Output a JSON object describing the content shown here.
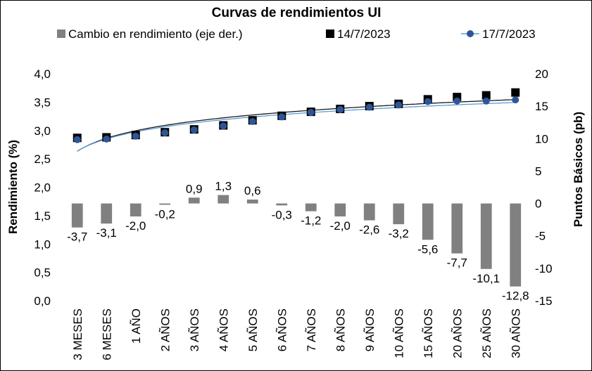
{
  "chart_data": {
    "type": "bar",
    "title": "Curvas de rendimientos UI",
    "categories": [
      "3 MESES",
      "6 MESES",
      "1 AÑO",
      "2 AÑOS",
      "3 AÑOS",
      "4 AÑOS",
      "5 AÑOS",
      "6 AÑOS",
      "7 AÑOS",
      "8 AÑOS",
      "9 AÑOS",
      "10 AÑOS",
      "15 AÑOS",
      "20 AÑOS",
      "25 AÑOS",
      "30 AÑOS"
    ],
    "legend": {
      "position": "top",
      "entries": [
        "Cambio en rendimiento (eje der.)",
        "14/7/2023",
        "17/7/2023"
      ]
    },
    "series": [
      {
        "name": "Cambio en rendimiento (eje der.)",
        "type": "bar",
        "axis": "right",
        "color": "#808080",
        "values": [
          -3.7,
          -3.1,
          -2.0,
          -0.2,
          0.9,
          1.3,
          0.6,
          -0.3,
          -1.2,
          -2.0,
          -2.6,
          -3.2,
          -5.6,
          -7.7,
          -10.1,
          -12.8
        ],
        "labels": [
          "-3,7",
          "-3,1",
          "-2,0",
          "-0,2",
          "0,9",
          "1,3",
          "0,6",
          "-0,3",
          "-1,2",
          "-2,0",
          "-2,6",
          "-3,2",
          "-5,6",
          "-7,7",
          "-10,1",
          "-12,8"
        ]
      },
      {
        "name": "14/7/2023",
        "type": "scatter",
        "axis": "left",
        "marker": "square",
        "color": "#000000",
        "trendline_color": "#1a1a1a",
        "values": [
          2.87,
          2.88,
          2.92,
          2.97,
          3.02,
          3.09,
          3.18,
          3.26,
          3.33,
          3.38,
          3.43,
          3.47,
          3.55,
          3.59,
          3.62,
          3.67
        ]
      },
      {
        "name": "17/7/2023",
        "type": "scatter",
        "axis": "left",
        "marker": "circle",
        "color": "#2e5597",
        "trendline_color": "#5b9bd5",
        "values": [
          2.84,
          2.85,
          2.9,
          2.96,
          3.01,
          3.08,
          3.16,
          3.24,
          3.32,
          3.37,
          3.41,
          3.45,
          3.51,
          3.52,
          3.52,
          3.54
        ]
      }
    ],
    "y_left": {
      "label": "Rendimiento (%)",
      "range": [
        0.0,
        4.0
      ],
      "tick_labels": [
        "0,0",
        "0,5",
        "1,0",
        "1,5",
        "2,0",
        "2,5",
        "3,0",
        "3,5",
        "4,0"
      ]
    },
    "y_right": {
      "label": "Puntos Básicos (pb)",
      "range": [
        -15,
        20
      ],
      "tick_labels": [
        "-15",
        "-10",
        "-5",
        "0",
        "5",
        "10",
        "15",
        "20"
      ]
    },
    "grid": false
  }
}
